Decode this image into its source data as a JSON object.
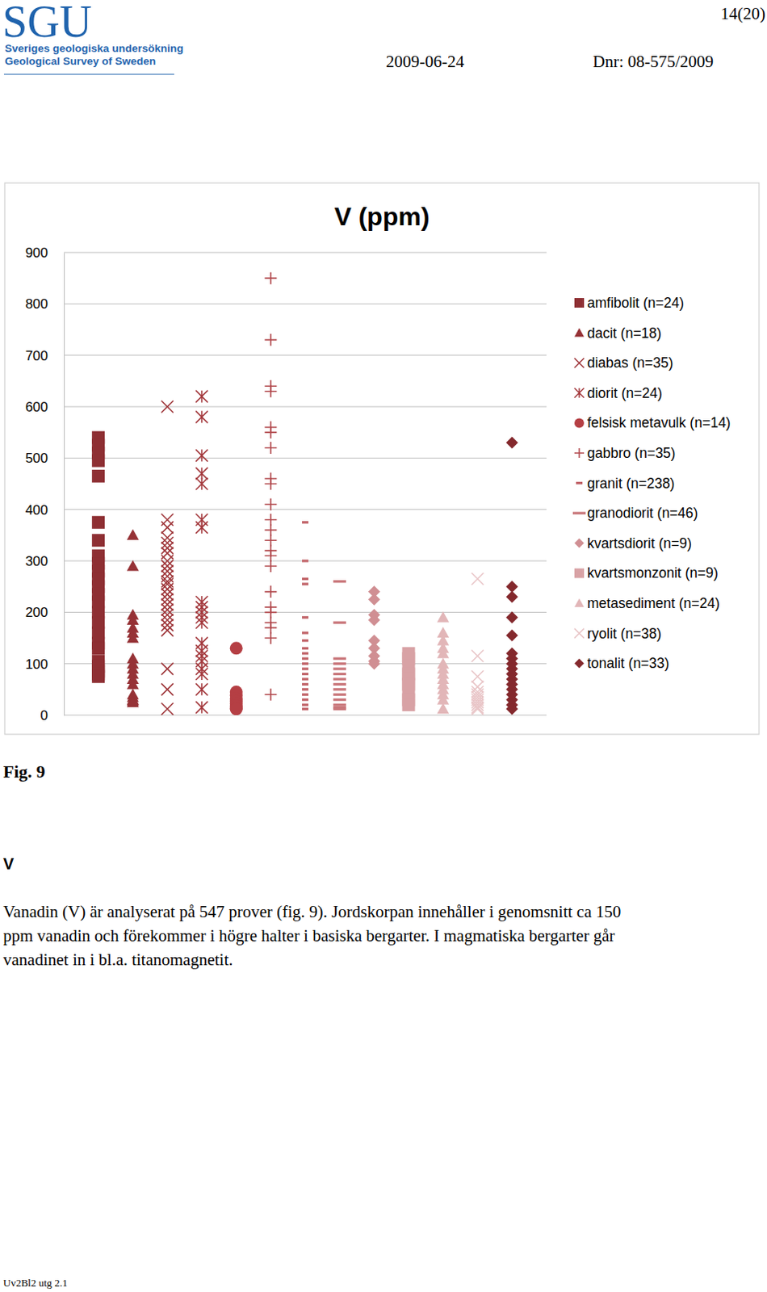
{
  "header": {
    "logo": "SGU",
    "logo_subtitle": [
      "Sveriges geologiska undersökning",
      "Geological Survey of Sweden"
    ],
    "page": "14(20)",
    "date": "2009-06-24",
    "reference": "Dnr: 08-575/2009"
  },
  "chart_data": {
    "type": "strip",
    "title": "V (ppm)",
    "ylim": [
      0,
      900
    ],
    "yticks": [
      0,
      100,
      200,
      300,
      400,
      500,
      600,
      700,
      800,
      900
    ],
    "grid": true,
    "legend": "right",
    "tick_labels": "y",
    "series": [
      {
        "name": "amfibolit (n=24)",
        "color": "#8e2f33",
        "marker": "square",
        "values": [
          540,
          525,
          510,
          495,
          465,
          375,
          340,
          310,
          295,
          280,
          265,
          250,
          235,
          220,
          200,
          180,
          160,
          140,
          130,
          105,
          95,
          85,
          80,
          75
        ]
      },
      {
        "name": "dacit (n=18)",
        "color": "#963236",
        "marker": "triangle",
        "values": [
          350,
          290,
          195,
          185,
          170,
          160,
          150,
          110,
          100,
          90,
          80,
          70,
          60,
          40,
          35,
          30,
          28,
          25
        ]
      },
      {
        "name": "diabas (n=35)",
        "color": "#9e3539",
        "marker": "x",
        "values": [
          600,
          380,
          365,
          345,
          335,
          325,
          315,
          300,
          290,
          280,
          270,
          260,
          255,
          245,
          235,
          225,
          215,
          205,
          195,
          185,
          175,
          165,
          90,
          50,
          12
        ]
      },
      {
        "name": "diorit (n=24)",
        "color": "#a3383c",
        "marker": "asterisk",
        "values": [
          620,
          580,
          505,
          470,
          450,
          380,
          365,
          220,
          210,
          200,
          190,
          180,
          140,
          125,
          115,
          105,
          90,
          80,
          50,
          15
        ]
      },
      {
        "name": "felsisk metavulk (n=14)",
        "color": "#b53f44",
        "marker": "circle",
        "values": [
          130,
          45,
          38,
          32,
          27,
          22,
          18,
          14,
          12
        ]
      },
      {
        "name": "gabbro (n=35)",
        "color": "#b24a4e",
        "marker": "plus",
        "values": [
          850,
          730,
          640,
          630,
          560,
          550,
          520,
          460,
          450,
          410,
          380,
          360,
          340,
          320,
          310,
          290,
          240,
          210,
          200,
          180,
          170,
          150,
          40
        ]
      },
      {
        "name": "granit (n=238)",
        "color": "#c2656a",
        "marker": "dash",
        "values": [
          375,
          300,
          265,
          255,
          190,
          160,
          145,
          130,
          120,
          110,
          100,
          90,
          80,
          70,
          60,
          50,
          40,
          30,
          20,
          12
        ]
      },
      {
        "name": "granodiorit (n=46)",
        "color": "#c9767a",
        "marker": "long-dash",
        "values": [
          260,
          180,
          110,
          100,
          90,
          80,
          70,
          60,
          50,
          40,
          30,
          20,
          15,
          12
        ]
      },
      {
        "name": "kvartsdiorit (n=9)",
        "color": "#d08f93",
        "marker": "diamond",
        "values": [
          240,
          225,
          195,
          185,
          145,
          130,
          115,
          105,
          100
        ]
      },
      {
        "name": "kvartsmonzonit (n=9)",
        "color": "#d8a2a5",
        "marker": "square",
        "values": [
          120,
          110,
          95,
          80,
          70,
          60,
          45,
          30,
          20
        ]
      },
      {
        "name": "metasediment (n=24)",
        "color": "#e2b6b8",
        "marker": "triangle",
        "values": [
          190,
          160,
          145,
          130,
          120,
          100,
          90,
          80,
          70,
          60,
          50,
          40,
          30,
          12
        ]
      },
      {
        "name": "ryolit (n=38)",
        "color": "#e9c6c8",
        "marker": "x",
        "values": [
          265,
          115,
          75,
          55,
          45,
          40,
          35,
          30,
          25,
          20,
          15,
          12
        ]
      },
      {
        "name": "tonalit (n=33)",
        "color": "#84292d",
        "marker": "diamond",
        "values": [
          530,
          250,
          230,
          190,
          155,
          120,
          110,
          100,
          90,
          80,
          70,
          60,
          50,
          40,
          30,
          20,
          12
        ]
      }
    ]
  },
  "figure_caption": "Fig. 9",
  "section": {
    "heading": "V",
    "paragraph": [
      "Vanadin (V) är analyserat på 547 prover (fig. 9). Jordskorpan innehåller i genomsnitt ca 150",
      "ppm vanadin och förekommer i högre halter i basiska bergarter. I magmatiska bergarter går",
      "vanadinet in i bl.a. titanomagnetit."
    ]
  },
  "footer": "Uv2Bl2 utg 2.1"
}
